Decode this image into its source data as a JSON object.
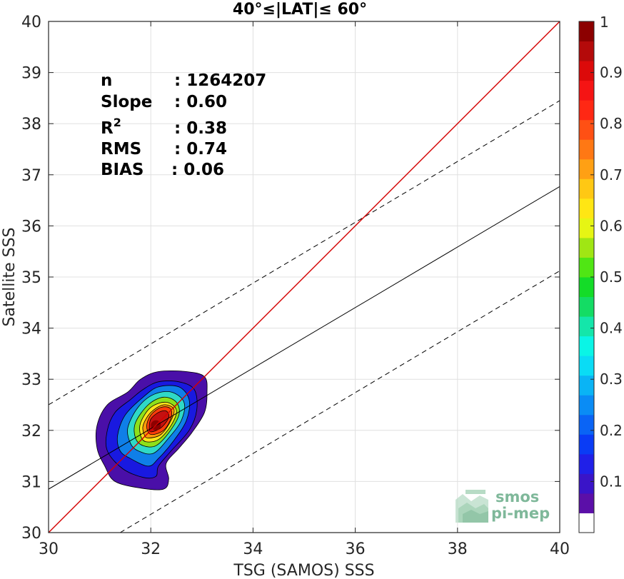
{
  "chart_data": {
    "type": "scatter",
    "subtype": "density-contour",
    "title": "40°≤|LAT|≤ 60°",
    "xlabel": "TSG (SAMOS) SSS",
    "ylabel": "Satellite SSS",
    "xlim": [
      30,
      40
    ],
    "ylim": [
      30,
      40
    ],
    "xticks": [
      30,
      32,
      34,
      36,
      38,
      40
    ],
    "yticks": [
      30,
      31,
      32,
      33,
      34,
      35,
      36,
      37,
      38,
      39,
      40
    ],
    "grid": true,
    "stats": {
      "n_label": "n",
      "n_value": ": 1264207",
      "slope_label": "Slope",
      "slope_value": ": 0.60",
      "r2_label": "R",
      "r2_sup": "2",
      "r2_value": ": 0.38",
      "rms_label": "RMS",
      "rms_value": ": 0.74",
      "bias_label": "BIAS",
      "bias_value": ": 0.06"
    },
    "lines": {
      "identity": {
        "x": [
          30,
          40
        ],
        "y": [
          30,
          40
        ],
        "color": "#d40000"
      },
      "regression": {
        "x": [
          30,
          40
        ],
        "y": [
          30.85,
          36.77
        ],
        "color": "#000000"
      },
      "upper_bound": {
        "x": [
          30,
          40
        ],
        "y": [
          32.5,
          38.45
        ],
        "dashed": true
      },
      "lower_bound": {
        "x": [
          31.4,
          40
        ],
        "y": [
          30.0,
          35.12
        ],
        "dashed": true
      }
    },
    "density_peak": {
      "x": 32.1,
      "y": 32.1
    },
    "contours": [
      {
        "level": 0.05,
        "color": "#4a0fa8",
        "points": [
          [
            31.3,
            31.0
          ],
          [
            31.8,
            30.87
          ],
          [
            32.25,
            30.85
          ],
          [
            32.35,
            31.05
          ],
          [
            32.3,
            31.35
          ],
          [
            32.55,
            31.65
          ],
          [
            32.8,
            31.95
          ],
          [
            33.05,
            32.35
          ],
          [
            33.1,
            32.75
          ],
          [
            33.05,
            33.05
          ],
          [
            32.7,
            33.15
          ],
          [
            32.15,
            33.15
          ],
          [
            31.8,
            33.0
          ],
          [
            31.55,
            32.75
          ],
          [
            31.15,
            32.5
          ],
          [
            30.95,
            32.1
          ],
          [
            30.95,
            31.65
          ],
          [
            31.1,
            31.3
          ]
        ]
      },
      {
        "level": 0.15,
        "color": "#1919e0",
        "points": [
          [
            31.45,
            31.25
          ],
          [
            31.85,
            31.08
          ],
          [
            32.1,
            31.1
          ],
          [
            32.15,
            31.3
          ],
          [
            32.4,
            31.6
          ],
          [
            32.75,
            32.0
          ],
          [
            32.9,
            32.4
          ],
          [
            32.85,
            32.8
          ],
          [
            32.55,
            32.95
          ],
          [
            32.15,
            32.95
          ],
          [
            31.85,
            32.8
          ],
          [
            31.6,
            32.6
          ],
          [
            31.3,
            32.35
          ],
          [
            31.15,
            32.0
          ],
          [
            31.15,
            31.6
          ]
        ]
      },
      {
        "level": 0.25,
        "color": "#0f7fe8",
        "points": [
          [
            31.6,
            31.45
          ],
          [
            31.95,
            31.3
          ],
          [
            32.15,
            31.45
          ],
          [
            32.45,
            31.8
          ],
          [
            32.7,
            32.2
          ],
          [
            32.75,
            32.6
          ],
          [
            32.55,
            32.85
          ],
          [
            32.15,
            32.85
          ],
          [
            31.85,
            32.65
          ],
          [
            31.5,
            32.3
          ],
          [
            31.35,
            31.9
          ],
          [
            31.4,
            31.6
          ]
        ]
      },
      {
        "level": 0.4,
        "color": "#2fd9c6",
        "points": [
          [
            31.75,
            31.6
          ],
          [
            32.05,
            31.55
          ],
          [
            32.35,
            31.85
          ],
          [
            32.6,
            32.2
          ],
          [
            32.65,
            32.55
          ],
          [
            32.4,
            32.75
          ],
          [
            32.05,
            32.7
          ],
          [
            31.75,
            32.45
          ],
          [
            31.55,
            32.05
          ],
          [
            31.6,
            31.75
          ]
        ]
      },
      {
        "level": 0.55,
        "color": "#8ee01a",
        "points": [
          [
            31.85,
            31.7
          ],
          [
            32.1,
            31.7
          ],
          [
            32.35,
            31.95
          ],
          [
            32.55,
            32.3
          ],
          [
            32.5,
            32.55
          ],
          [
            32.25,
            32.65
          ],
          [
            31.95,
            32.5
          ],
          [
            31.7,
            32.15
          ],
          [
            31.7,
            31.85
          ]
        ]
      },
      {
        "level": 0.65,
        "color": "#ffe41a",
        "points": [
          [
            31.9,
            31.78
          ],
          [
            32.15,
            31.82
          ],
          [
            32.4,
            32.1
          ],
          [
            32.5,
            32.4
          ],
          [
            32.3,
            32.55
          ],
          [
            32.0,
            32.45
          ],
          [
            31.8,
            32.15
          ],
          [
            31.8,
            31.9
          ]
        ]
      },
      {
        "level": 0.75,
        "color": "#ff9a0a",
        "points": [
          [
            31.95,
            31.85
          ],
          [
            32.2,
            31.92
          ],
          [
            32.4,
            32.2
          ],
          [
            32.45,
            32.42
          ],
          [
            32.25,
            32.5
          ],
          [
            32.0,
            32.35
          ],
          [
            31.85,
            32.1
          ],
          [
            31.87,
            31.92
          ]
        ]
      },
      {
        "level": 0.85,
        "color": "#ff3d0a",
        "points": [
          [
            32.0,
            31.92
          ],
          [
            32.25,
            32.0
          ],
          [
            32.4,
            32.25
          ],
          [
            32.38,
            32.43
          ],
          [
            32.2,
            32.45
          ],
          [
            32.0,
            32.3
          ],
          [
            31.92,
            32.08
          ]
        ]
      },
      {
        "level": 0.95,
        "color": "#c41010",
        "points": [
          [
            32.0,
            31.97
          ],
          [
            32.2,
            32.05
          ],
          [
            32.35,
            32.25
          ],
          [
            32.3,
            32.38
          ],
          [
            32.15,
            32.35
          ],
          [
            32.0,
            32.22
          ],
          [
            31.97,
            32.05
          ]
        ]
      }
    ],
    "colorbar": {
      "ticks": [
        "0.1",
        "0.2",
        "0.3",
        "0.4",
        "0.5",
        "0.6",
        "0.7",
        "0.8",
        "0.9",
        "1"
      ],
      "tick_values": [
        0.1,
        0.2,
        0.3,
        0.4,
        0.5,
        0.6,
        0.7,
        0.8,
        0.9,
        1.0
      ],
      "colors": [
        "#ffffff",
        "#5b0fa8",
        "#3a14c8",
        "#2020e8",
        "#0a3cf5",
        "#0a64f5",
        "#0a8cf5",
        "#0ab4f5",
        "#0adcf5",
        "#0af5e6",
        "#14e6aa",
        "#14dc64",
        "#14dc28",
        "#50e614",
        "#a0e614",
        "#e6f514",
        "#ffe614",
        "#ffc814",
        "#ffa014",
        "#ff7814",
        "#ff5014",
        "#ff2814",
        "#f51414",
        "#dc0a0a",
        "#b40a0a",
        "#8c0000"
      ]
    },
    "logo": {
      "line1": "smos",
      "line2": "pi-mep"
    }
  }
}
